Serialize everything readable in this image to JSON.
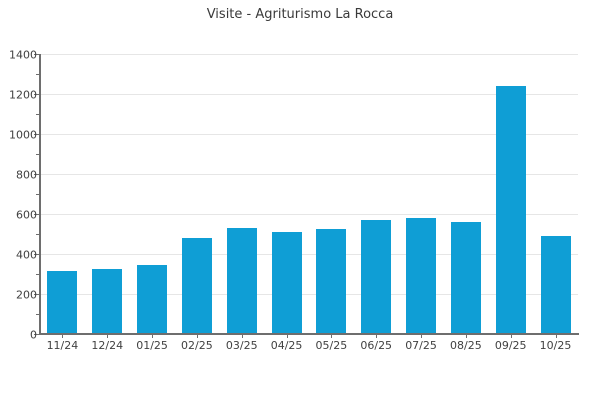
{
  "title": "Visite - Agriturismo La Rocca",
  "colors": {
    "bar": "#0f9ed5",
    "grid": "#e6e6e6",
    "axis": "#6e6e6e",
    "title_text": "#3a3a3a",
    "tick_text": "#414141",
    "background": "#ffffff"
  },
  "chart_data": {
    "type": "bar",
    "title": "Visite - Agriturismo La Rocca",
    "categories": [
      "11/24",
      "12/24",
      "01/25",
      "02/25",
      "03/25",
      "04/25",
      "05/25",
      "06/25",
      "07/25",
      "08/25",
      "09/25",
      "10/25"
    ],
    "values": [
      315,
      325,
      345,
      480,
      530,
      510,
      525,
      570,
      580,
      560,
      1240,
      490
    ],
    "xlabel": "",
    "ylabel": "",
    "ylim": [
      0,
      1400
    ],
    "y_major_ticks": [
      0,
      200,
      400,
      600,
      800,
      1000,
      1200,
      1400
    ],
    "y_minor_ticks": [
      100,
      300,
      500,
      700,
      900,
      1100,
      1300
    ],
    "grid": "horizontal-major",
    "legend": "none",
    "bar_color": "#0f9ed5"
  }
}
